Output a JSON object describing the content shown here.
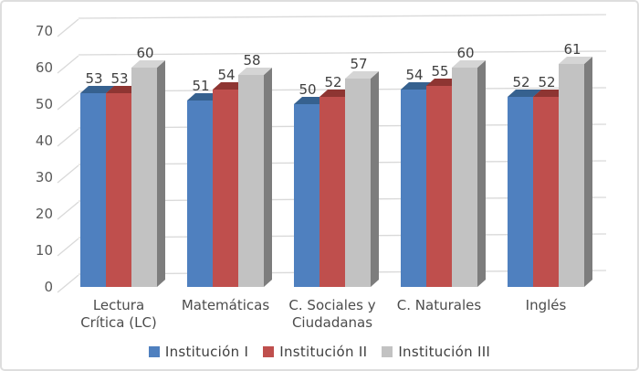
{
  "chart_data": {
    "type": "bar",
    "variant": "3d-clustered-column",
    "title": "",
    "categories": [
      "Lectura Crítica (LC)",
      "Matemáticas",
      "C. Sociales y Ciudadanas",
      "C. Naturales",
      "Inglés"
    ],
    "category_lines": [
      [
        "Lectura",
        "Crítica (LC)"
      ],
      [
        "Matemáticas"
      ],
      [
        "C. Sociales y",
        "Ciudadanas"
      ],
      [
        "C. Naturales"
      ],
      [
        "Inglés"
      ]
    ],
    "series": [
      {
        "name": "Institución I",
        "color": "#4f80bf",
        "color_top": "#36618f",
        "color_side": "#2e4d72",
        "values": [
          53,
          51,
          50,
          54,
          52
        ]
      },
      {
        "name": "Institución II",
        "color": "#bf4f4d",
        "color_top": "#8e3532",
        "color_side": "#7e2f2c",
        "values": [
          53,
          54,
          52,
          55,
          52
        ]
      },
      {
        "name": "Institución III",
        "color": "#c2c2c2",
        "color_top": "#d5d5d5",
        "color_side": "#7d7d7d",
        "values": [
          60,
          58,
          57,
          60,
          61
        ]
      }
    ],
    "data_labels": true,
    "ylim": [
      0,
      70
    ],
    "ytick_step": 10,
    "ytick_labels": [
      "0",
      "10",
      "20",
      "30",
      "40",
      "50",
      "60",
      "70"
    ],
    "grid": true,
    "legend_position": "bottom",
    "legend_labels": [
      "Institución I",
      "Institución II",
      "Institución III"
    ],
    "colors": {
      "grid": "#d9d9d9",
      "axis_text": "#595959",
      "value_label_text": "#3f3f3f",
      "category_text": "#4c4c4c",
      "legend_text": "#404040",
      "frame_border": "#dedede",
      "background": "#ffffff"
    }
  }
}
